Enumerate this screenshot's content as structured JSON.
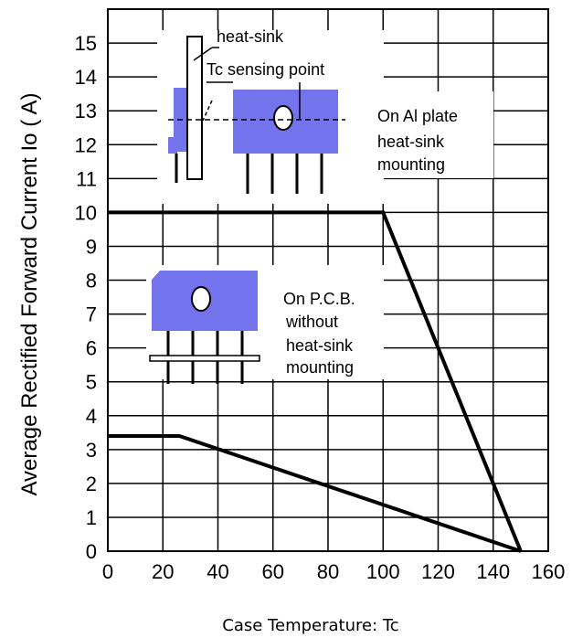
{
  "chart_data": {
    "type": "line",
    "title": "",
    "xlabel": "Case Temperature: Tc",
    "ylabel": "Average Rectified Forward Current Io ( A)",
    "xlim": [
      0,
      160
    ],
    "ylim": [
      0,
      16
    ],
    "xticks": [
      0,
      20,
      40,
      60,
      80,
      100,
      120,
      140,
      160
    ],
    "yticks": [
      0,
      1,
      2,
      3,
      4,
      5,
      6,
      7,
      8,
      9,
      10,
      11,
      12,
      13,
      14,
      15
    ],
    "grid": true,
    "series": [
      {
        "x": [
          0,
          100,
          150
        ],
        "y": [
          10,
          10,
          0
        ]
      },
      {
        "x": [
          0,
          26,
          150
        ],
        "y": [
          3.4,
          3.4,
          0
        ]
      }
    ],
    "annotations": {
      "heat_sink": "heat-sink",
      "tc_sensing": "Tc sensing point",
      "al_plate": [
        "On Al plate",
        "heat-sink",
        "mounting"
      ],
      "pcb": [
        "On P.C.B.",
        "without",
        "heat-sink",
        "mounting"
      ]
    },
    "colors": {
      "package": "#7373ee",
      "line": "#000000"
    }
  }
}
